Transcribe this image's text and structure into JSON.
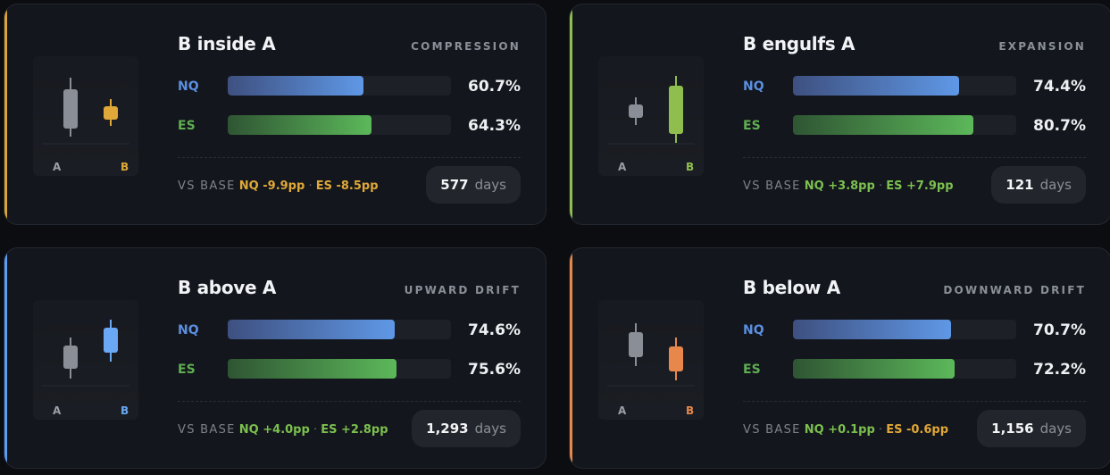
{
  "series_labels": {
    "nq": "NQ",
    "es": "ES"
  },
  "candle_labels": {
    "a": "A",
    "b": "B"
  },
  "vs_label": "VS BASE",
  "dot": "·",
  "days_unit": "days",
  "colors": {
    "nq": "#5b8fe0",
    "es": "#5fae52",
    "positive": "#7cc04f",
    "negative": "#e0a838",
    "candle_a": "#8a8e96"
  },
  "cards": [
    {
      "title": "B inside A",
      "tag": "COMPRESSION",
      "accent": "#d9a43a",
      "candle_b_color": "#e0a838",
      "nq_pct": "60.7%",
      "nq_value": 60.7,
      "es_pct": "64.3%",
      "es_value": 64.3,
      "nq_delta": "NQ -9.9pp",
      "nq_sign": "neg",
      "es_delta": "ES -8.5pp",
      "es_sign": "neg",
      "days": "577"
    },
    {
      "title": "B engulfs A",
      "tag": "EXPANSION",
      "accent": "#8fbe4e",
      "candle_b_color": "#8fbe4e",
      "nq_pct": "74.4%",
      "nq_value": 74.4,
      "es_pct": "80.7%",
      "es_value": 80.7,
      "nq_delta": "NQ +3.8pp",
      "nq_sign": "pos",
      "es_delta": "ES +7.9pp",
      "es_sign": "pos",
      "days": "121"
    },
    {
      "title": "B above A",
      "tag": "UPWARD DRIFT",
      "accent": "#5b9cf5",
      "candle_b_color": "#6aa8f5",
      "nq_pct": "74.6%",
      "nq_value": 74.6,
      "es_pct": "75.6%",
      "es_value": 75.6,
      "nq_delta": "NQ +4.0pp",
      "nq_sign": "pos",
      "es_delta": "ES +2.8pp",
      "es_sign": "pos",
      "days": "1,293"
    },
    {
      "title": "B below A",
      "tag": "DOWNWARD DRIFT",
      "accent": "#e5894a",
      "candle_b_color": "#e8874b",
      "nq_pct": "70.7%",
      "nq_value": 70.7,
      "es_pct": "72.2%",
      "es_value": 72.2,
      "nq_delta": "NQ +0.1pp",
      "nq_sign": "pos",
      "es_delta": "ES -0.6pp",
      "es_sign": "neg",
      "days": "1,156"
    }
  ]
}
